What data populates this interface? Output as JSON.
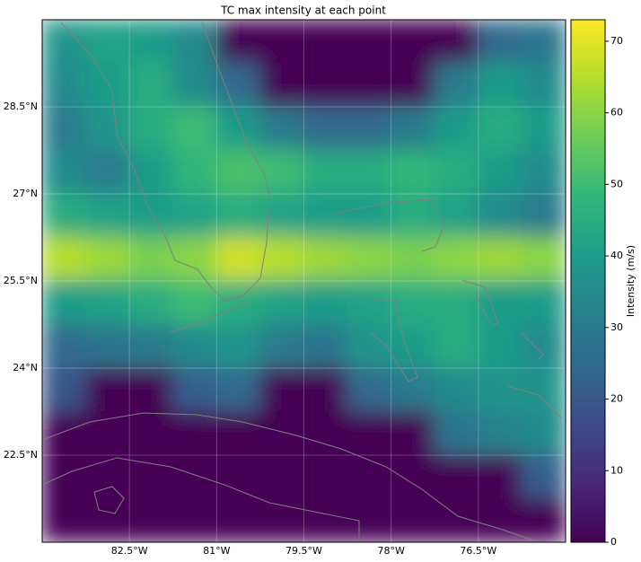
{
  "chart_data": {
    "type": "heatmap",
    "title": "TC max intensity at each point",
    "xlim": [
      -84,
      -75
    ],
    "ylim": [
      21,
      30
    ],
    "xticks": [
      {
        "value": -82.5,
        "label": "82.5°W"
      },
      {
        "value": -81,
        "label": "81°W"
      },
      {
        "value": -79.5,
        "label": "79.5°W"
      },
      {
        "value": -78,
        "label": "78°W"
      },
      {
        "value": -76.5,
        "label": "76.5°W"
      }
    ],
    "yticks": [
      {
        "value": 22.5,
        "label": "22.5°N"
      },
      {
        "value": 24,
        "label": "24°N"
      },
      {
        "value": 25.5,
        "label": "25.5°N"
      },
      {
        "value": 27,
        "label": "27°N"
      },
      {
        "value": 28.5,
        "label": "28.5°N"
      }
    ],
    "grid": true,
    "colormap": "viridis",
    "values": [
      [
        38,
        42,
        40,
        35,
        0,
        0,
        0,
        0,
        0,
        0,
        25,
        28
      ],
      [
        35,
        40,
        45,
        35,
        25,
        0,
        0,
        0,
        0,
        30,
        40,
        35
      ],
      [
        30,
        38,
        45,
        50,
        40,
        30,
        25,
        25,
        30,
        40,
        45,
        40
      ],
      [
        35,
        30,
        40,
        48,
        52,
        50,
        45,
        45,
        48,
        45,
        40,
        35
      ],
      [
        45,
        42,
        40,
        42,
        45,
        42,
        40,
        40,
        45,
        42,
        35,
        30
      ],
      [
        65,
        62,
        58,
        60,
        68,
        65,
        62,
        60,
        58,
        60,
        62,
        60
      ],
      [
        40,
        42,
        45,
        50,
        45,
        42,
        40,
        42,
        45,
        45,
        40,
        40
      ],
      [
        25,
        28,
        30,
        35,
        38,
        30,
        28,
        38,
        40,
        45,
        40,
        35
      ],
      [
        20,
        0,
        0,
        22,
        25,
        0,
        0,
        25,
        30,
        35,
        38,
        38
      ],
      [
        0,
        0,
        0,
        0,
        0,
        0,
        0,
        0,
        0,
        28,
        32,
        35
      ],
      [
        0,
        0,
        0,
        0,
        0,
        0,
        0,
        0,
        0,
        0,
        0,
        22
      ],
      [
        0,
        0,
        0,
        0,
        0,
        0,
        0,
        0,
        0,
        0,
        0,
        0
      ]
    ],
    "colorbar": {
      "label": "Intensity (m/s)",
      "lim": [
        0,
        73
      ],
      "ticks": [
        0,
        10,
        20,
        30,
        40,
        50,
        60,
        70
      ]
    }
  }
}
